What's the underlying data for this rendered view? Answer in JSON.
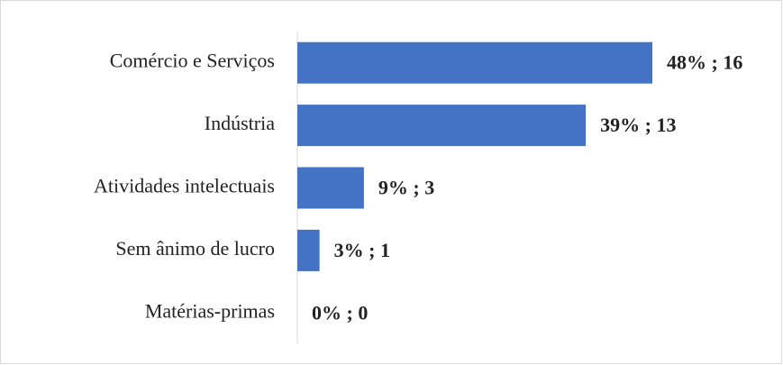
{
  "chart_data": {
    "type": "barh",
    "categories": [
      "Comércio e Serviços",
      "Indústria",
      "Atividades intelectuais",
      "Sem ânimo de lucro",
      "Matérias-primas"
    ],
    "values": [
      16,
      13,
      3,
      1,
      0
    ],
    "value_labels": [
      "48% ; 16",
      "39% ; 13",
      "9% ; 3",
      "3% ; 1",
      "0% ; 0"
    ],
    "color": "#4472c4"
  }
}
